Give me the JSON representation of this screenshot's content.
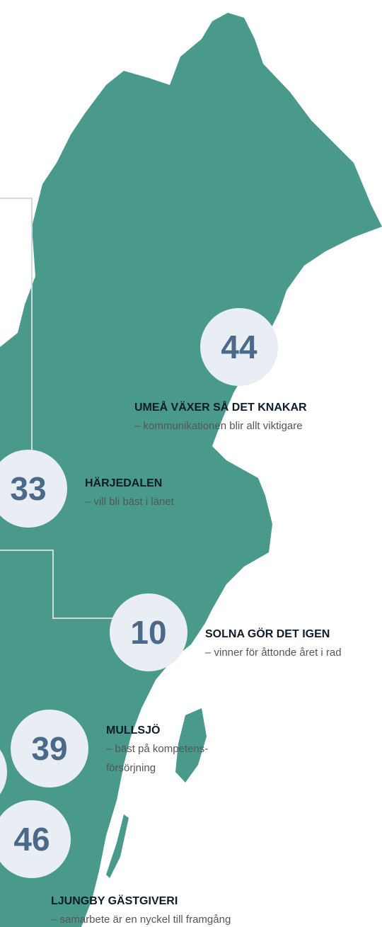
{
  "callouts": [
    {
      "number": 44,
      "title": "UMEÅ VÄXER SÅ DET KNAKAR",
      "subtitle": [
        "– kommunikationen blir allt viktigare"
      ]
    },
    {
      "number": 33,
      "title": "HÄRJEDALEN",
      "subtitle": [
        "– vill bli bäst i länet"
      ]
    },
    {
      "number": 10,
      "title": "SOLNA GÖR DET IGEN",
      "subtitle": [
        "– vinner för åttonde året i rad"
      ]
    },
    {
      "number": 39,
      "title": "MULLSJÖ",
      "subtitle": [
        "– bäst på kompetens-",
        "försörjning"
      ]
    },
    {
      "number": 46,
      "title": "LJUNGBY GÄSTGIVERI",
      "subtitle": [
        "– samarbete är en nyckel till framgång"
      ]
    }
  ]
}
